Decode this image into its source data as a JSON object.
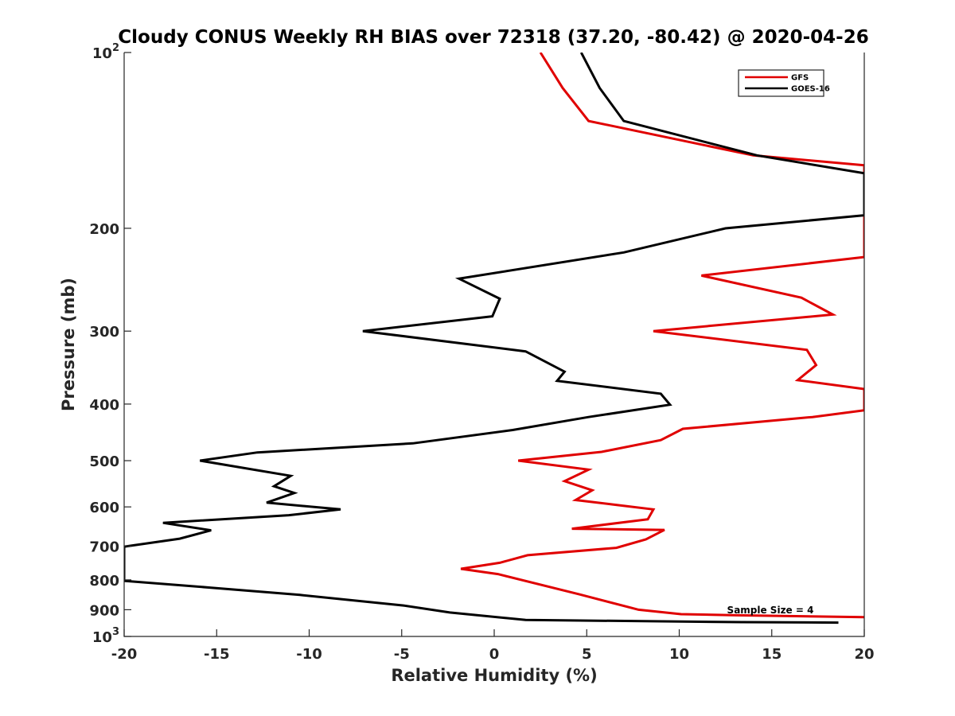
{
  "chart_data": {
    "type": "line",
    "title": "Cloudy CONUS Weekly RH BIAS over 72318 (37.20, -80.42) @ 2020-04-26",
    "xlabel": "Relative Humidity (%)",
    "ylabel": "Pressure (mb)",
    "xlim": [
      -20,
      20
    ],
    "ylim": [
      100,
      1000
    ],
    "y_scale": "log",
    "y_direction": "reversed",
    "x_ticks": [
      -20,
      -15,
      -10,
      -5,
      0,
      5,
      10,
      15,
      20
    ],
    "x_tick_labels": [
      "-20",
      "-15",
      "-10",
      "-5",
      "0",
      "5",
      "10",
      "15",
      "20"
    ],
    "y_ticks": [
      100,
      200,
      300,
      400,
      500,
      600,
      700,
      800,
      900,
      1000
    ],
    "y_tick_labels": [
      {
        "base": "10",
        "exp": "2"
      },
      {
        "base": "200"
      },
      {
        "base": "300"
      },
      {
        "base": "400"
      },
      {
        "base": "500"
      },
      {
        "base": "600"
      },
      {
        "base": "700"
      },
      {
        "base": "800"
      },
      {
        "base": "900"
      },
      {
        "base": "10",
        "exp": "3"
      }
    ],
    "grid": false,
    "legend_position": "top-right",
    "annotation": "Sample Size = 4",
    "series": [
      {
        "name": "GFS",
        "color": "#e00000",
        "points": [
          [
            2.5,
            100
          ],
          [
            3.7,
            115
          ],
          [
            5.1,
            131
          ],
          [
            14.0,
            150
          ],
          [
            20.0,
            156
          ],
          [
            20.0,
            224
          ],
          [
            11.2,
            241
          ],
          [
            16.6,
            263
          ],
          [
            18.3,
            281
          ],
          [
            8.6,
            300
          ],
          [
            16.9,
            323
          ],
          [
            17.4,
            343
          ],
          [
            16.4,
            364
          ],
          [
            20.0,
            377
          ],
          [
            20.0,
            410
          ],
          [
            17.2,
            421
          ],
          [
            10.2,
            441
          ],
          [
            9.0,
            461
          ],
          [
            5.8,
            483
          ],
          [
            1.3,
            500
          ],
          [
            5.1,
            518
          ],
          [
            3.8,
            542
          ],
          [
            5.3,
            562
          ],
          [
            4.4,
            584
          ],
          [
            8.6,
            606
          ],
          [
            8.3,
            630
          ],
          [
            4.2,
            654
          ],
          [
            9.2,
            657
          ],
          [
            8.2,
            682
          ],
          [
            6.6,
            705
          ],
          [
            1.8,
            726
          ],
          [
            0.3,
            748
          ],
          [
            -1.8,
            766
          ],
          [
            0.2,
            782
          ],
          [
            4.6,
            847
          ],
          [
            7.8,
            900
          ],
          [
            10.1,
            916
          ],
          [
            13.1,
            920
          ],
          [
            20.0,
            927
          ]
        ]
      },
      {
        "name": "GOES-16",
        "color": "#000000",
        "points": [
          [
            4.7,
            100
          ],
          [
            5.7,
            115
          ],
          [
            7.0,
            131
          ],
          [
            14.2,
            150
          ],
          [
            20.0,
            161
          ],
          [
            20.0,
            190
          ],
          [
            12.5,
            200
          ],
          [
            7.0,
            220
          ],
          [
            -1.9,
            244
          ],
          [
            0.3,
            264
          ],
          [
            -0.1,
            283
          ],
          [
            -7.1,
            300
          ],
          [
            1.7,
            325
          ],
          [
            3.8,
            352
          ],
          [
            3.4,
            365
          ],
          [
            9.0,
            384
          ],
          [
            9.5,
            401
          ],
          [
            5.1,
            421
          ],
          [
            1.0,
            443
          ],
          [
            -4.4,
            467
          ],
          [
            -12.8,
            484
          ],
          [
            -15.9,
            500
          ],
          [
            -11.0,
            531
          ],
          [
            -11.9,
            553
          ],
          [
            -10.8,
            568
          ],
          [
            -12.3,
            590
          ],
          [
            -8.3,
            606
          ],
          [
            -11.1,
            620
          ],
          [
            -17.9,
            639
          ],
          [
            -15.3,
            658
          ],
          [
            -17.0,
            680
          ],
          [
            -20.0,
            702
          ],
          [
            -20.0,
            803
          ],
          [
            -15.3,
            825
          ],
          [
            -10.5,
            849
          ],
          [
            -4.9,
            885
          ],
          [
            -2.4,
            910
          ],
          [
            1.7,
            937
          ],
          [
            13.4,
            945
          ],
          [
            18.6,
            947
          ]
        ]
      }
    ]
  }
}
